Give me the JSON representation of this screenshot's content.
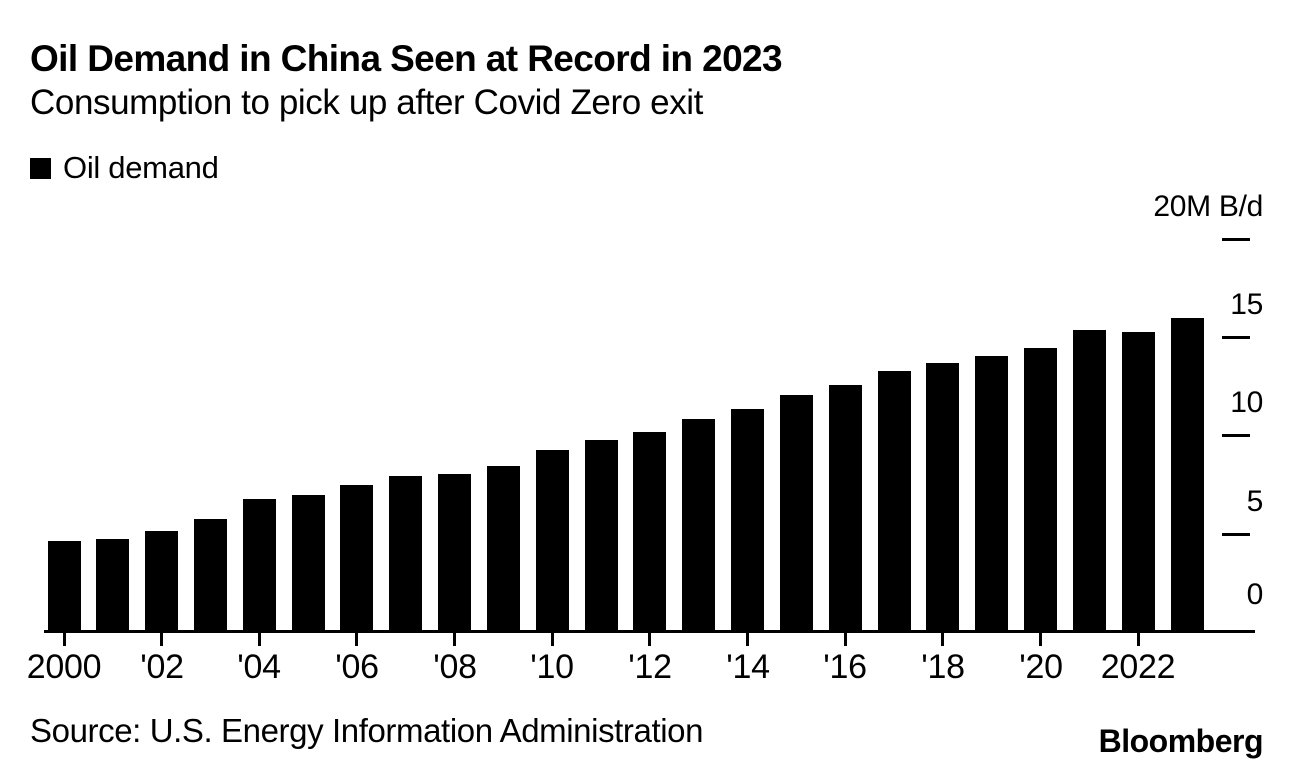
{
  "header": {
    "title": "Oil Demand in China Seen at Record in 2023",
    "subtitle": "Consumption to pick up after Covid Zero exit"
  },
  "legend": {
    "label": "Oil demand",
    "swatch_color": "#000000"
  },
  "chart_data": {
    "type": "bar",
    "title": "Oil Demand in China Seen at Record in 2023",
    "subtitle": "Consumption to pick up after Covid Zero exit",
    "series_name": "Oil demand",
    "unit": "M B/d",
    "bar_color": "#000000",
    "x": [
      2000,
      2001,
      2002,
      2003,
      2004,
      2005,
      2006,
      2007,
      2008,
      2009,
      2010,
      2011,
      2012,
      2013,
      2014,
      2015,
      2016,
      2017,
      2018,
      2019,
      2020,
      2021,
      2022,
      2023
    ],
    "values": [
      4.6,
      4.7,
      5.1,
      5.7,
      6.7,
      6.9,
      7.4,
      7.9,
      8.0,
      8.4,
      9.2,
      9.7,
      10.1,
      10.8,
      11.3,
      12.0,
      12.5,
      13.2,
      13.6,
      14.0,
      14.4,
      15.3,
      15.2,
      15.9
    ],
    "ylim": [
      0,
      20
    ],
    "grid": false,
    "legend_position": "top-left",
    "y_axis": {
      "side": "right",
      "ticks": [
        {
          "value": 20,
          "label": "20M B/d",
          "tick": true
        },
        {
          "value": 15,
          "label": "15",
          "tick": true
        },
        {
          "value": 10,
          "label": "10",
          "tick": true
        },
        {
          "value": 5,
          "label": "5",
          "tick": true
        },
        {
          "value": 0,
          "label": "0",
          "tick": false
        }
      ]
    },
    "x_axis": {
      "tick_years": [
        2000,
        2002,
        2004,
        2006,
        2008,
        2010,
        2012,
        2014,
        2016,
        2018,
        2020,
        2022
      ],
      "tick_labels": [
        "2000",
        "'02",
        "'04",
        "'06",
        "'08",
        "'10",
        "'12",
        "'14",
        "'16",
        "'18",
        "'20",
        "2022"
      ]
    }
  },
  "footer": {
    "source": "Source: U.S. Energy Information Administration",
    "brand": "Bloomberg"
  }
}
